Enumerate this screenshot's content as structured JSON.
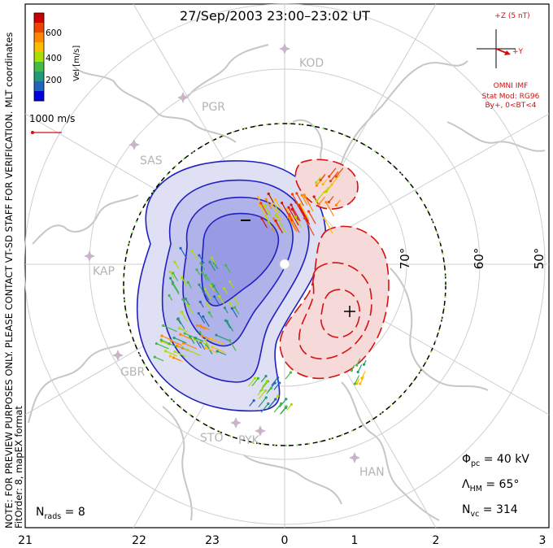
{
  "header": {
    "title": "27/Sep/2003 23:00–23:02 UT"
  },
  "colorbar": {
    "label": "Vel [m/s]",
    "ticks": [
      "600",
      "400",
      "200"
    ],
    "colors": [
      "#cc0000",
      "#ee4400",
      "#ff8800",
      "#ffbb00",
      "#aadd00",
      "#44bb44",
      "#229977",
      "#2266bb",
      "#0000dd"
    ]
  },
  "coordinates_label": "MLT coordinates",
  "scale": {
    "label": "1000 m/s"
  },
  "notes": {
    "verification": "NOTE: FOR PREVIEW PURPOSES ONLY. PLEASE CONTACT VT-SD STAFF FOR VERIFICATION.",
    "fit": "FitOrder: 8, mapEX format"
  },
  "imf": {
    "z_label": "+Z (5 nT)",
    "y_label": "+Y",
    "source": "OMNI IMF",
    "model": "Stat Mod: RG96",
    "conditions": "By+, 0<BT<4"
  },
  "stations": [
    "KOD",
    "PGR",
    "SAS",
    "KAP",
    "GBR",
    "STO",
    "PYK",
    "HAN"
  ],
  "latitude_labels": [
    "70°",
    "60°",
    "50°"
  ],
  "mlt_labels": [
    "21",
    "22",
    "23",
    "0",
    "1",
    "2",
    "3"
  ],
  "stats": {
    "nrads": {
      "label": "N",
      "sub": "rads",
      "value": " = 8"
    },
    "phi": {
      "label": "Φ",
      "sub": "pc",
      "value": " = 40 kV"
    },
    "lambda": {
      "label": "Λ",
      "sub": "HM",
      "value": " = 65°"
    },
    "nvc": {
      "label": "N",
      "sub": "vc",
      "value": " = 314"
    }
  },
  "colors": {
    "dusk_cell": "#2020c0",
    "dawn_cell": "#d81010",
    "dusk_fill": "#dfe0f4",
    "dawn_fill": "#f6dada",
    "grid": "#cfcfcf",
    "land": "#c6c6c6"
  }
}
